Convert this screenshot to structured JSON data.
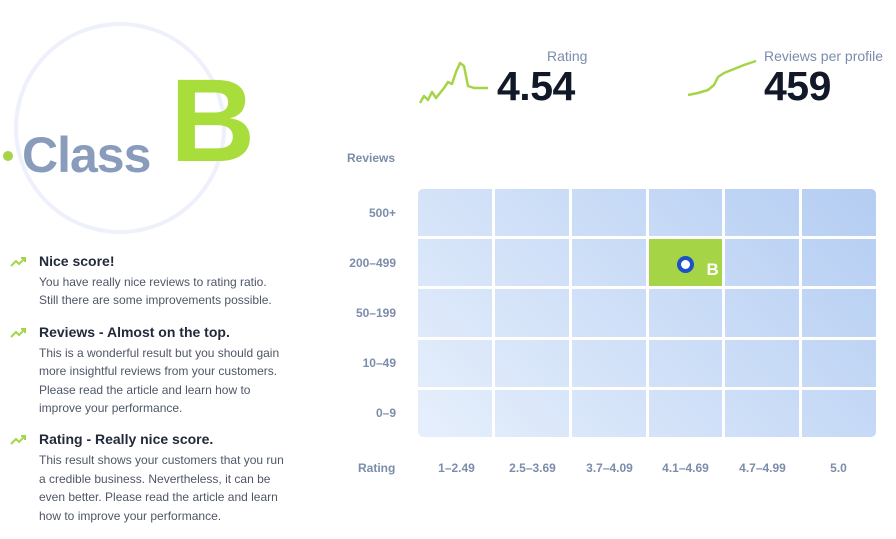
{
  "class_badge": {
    "word": "Class",
    "letter": "B"
  },
  "feedback": [
    {
      "title": "Nice score!",
      "lines": [
        "You have really nice reviews to rating ratio.",
        "Still there are some improvements possible."
      ]
    },
    {
      "title": "Reviews - Almost on the top.",
      "lines": [
        "This is a wonderful result but you should gain",
        "more insightful reviews from your customers.",
        "Please read the article and learn how to",
        "improve your performance."
      ]
    },
    {
      "title": "Rating - Really nice score.",
      "lines": [
        "This result shows your customers that you run",
        "a credible business. Nevertheless, it can be",
        "even better. Please read the article and learn",
        "how to improve your performance."
      ]
    }
  ],
  "stats": {
    "rating": {
      "label": "Rating",
      "value": "4.54"
    },
    "reviews": {
      "label": "Reviews per profile",
      "value": "459"
    }
  },
  "matrix": {
    "y_title": "Reviews",
    "x_title": "Rating",
    "rows": [
      "500+",
      "200–499",
      "50–199",
      "10–49",
      "0–9"
    ],
    "columns": [
      "1–2.49",
      "2.5–3.69",
      "3.7–4.09",
      "4.1–4.69",
      "4.7–4.99",
      "5.0"
    ],
    "active": {
      "row": "200–499",
      "column": "4.1–4.69",
      "label": "B"
    }
  },
  "colors": {
    "accent_green": "#a9dd3c",
    "marker_blue": "#1e50c8",
    "label_gray_blue": "#7b8daa"
  }
}
